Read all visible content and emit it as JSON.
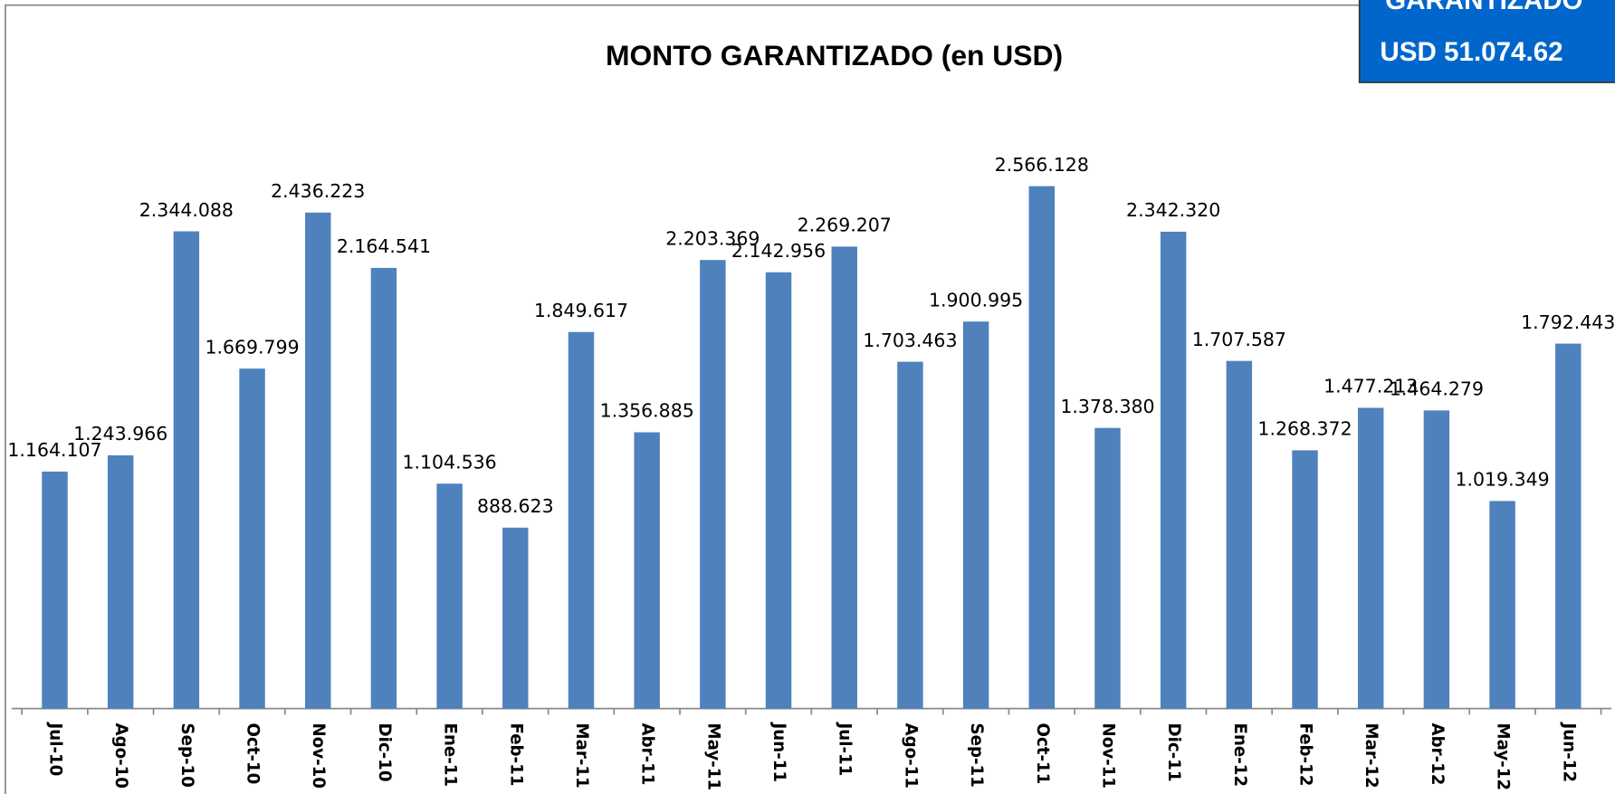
{
  "chart_data": {
    "type": "bar",
    "title": "MONTO GARANTIZADO (en USD)",
    "box_lines": [
      "GARANTIZADO",
      "USD  51.074.62"
    ],
    "categories": [
      "Jul-10",
      "Ago-10",
      "Sep-10",
      "Oct-10",
      "Nov-10",
      "Dic-10",
      "Ene-11",
      "Feb-11",
      "Mar-11",
      "Abr-11",
      "May-11",
      "Jun-11",
      "Jul-11",
      "Ago-11",
      "Sep-11",
      "Oct-11",
      "Nov-11",
      "Dic-11",
      "Ene-12",
      "Feb-12",
      "Mar-12",
      "Abr-12",
      "May-12",
      "Jun-12"
    ],
    "values": [
      1164107,
      1243966,
      2344088,
      1669799,
      2436223,
      2164541,
      1104536,
      888623,
      1849617,
      1356885,
      2203369,
      2142956,
      2269207,
      1703463,
      1900995,
      2566128,
      1378380,
      2342320,
      1707587,
      1268372,
      1477213,
      1464279,
      1019349,
      1792443
    ],
    "value_labels": [
      "1.164.107",
      "1.243.966",
      "2.344.088",
      "1.669.799",
      "2.436.223",
      "2.164.541",
      "1.104.536",
      "888.623",
      "1.849.617",
      "1.356.885",
      "2.203.369",
      "2.142.956",
      "2.269.207",
      "1.703.463",
      "1.900.995",
      "2.566.128",
      "1.378.380",
      "2.342.320",
      "1.707.587",
      "1.268.372",
      "1.477.213",
      "1.464.279",
      "1.019.349",
      "1.792.443"
    ],
    "color": "#4f81bd",
    "ylim": [
      0,
      3000000
    ]
  }
}
